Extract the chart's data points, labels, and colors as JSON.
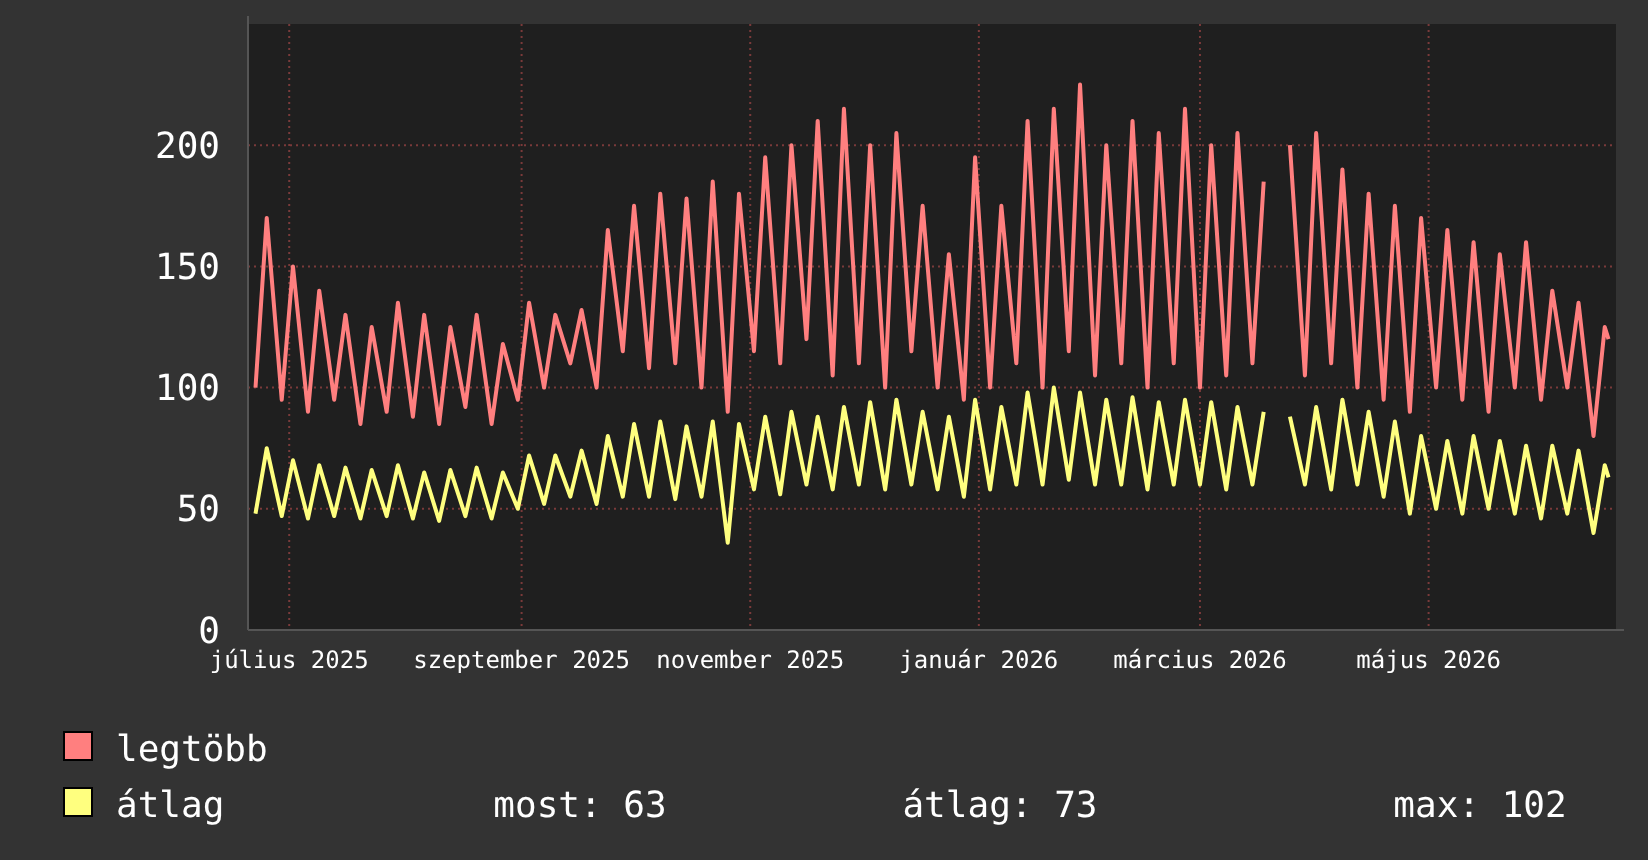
{
  "chart_data": {
    "type": "line",
    "x": [
      "2025-06-22",
      "2025-06-25",
      "2025-06-29",
      "2025-07-02",
      "2025-07-06",
      "2025-07-09",
      "2025-07-13",
      "2025-07-16",
      "2025-07-20",
      "2025-07-23",
      "2025-07-27",
      "2025-07-30",
      "2025-08-03",
      "2025-08-06",
      "2025-08-10",
      "2025-08-13",
      "2025-08-17",
      "2025-08-20",
      "2025-08-24",
      "2025-08-27",
      "2025-08-31",
      "2025-09-03",
      "2025-09-07",
      "2025-09-10",
      "2025-09-14",
      "2025-09-17",
      "2025-09-21",
      "2025-09-24",
      "2025-09-28",
      "2025-10-01",
      "2025-10-05",
      "2025-10-08",
      "2025-10-12",
      "2025-10-15",
      "2025-10-19",
      "2025-10-22",
      "2025-10-26",
      "2025-10-29",
      "2025-11-02",
      "2025-11-05",
      "2025-11-09",
      "2025-11-12",
      "2025-11-16",
      "2025-11-19",
      "2025-11-23",
      "2025-11-26",
      "2025-11-30",
      "2025-12-03",
      "2025-12-07",
      "2025-12-10",
      "2025-12-14",
      "2025-12-17",
      "2025-12-21",
      "2025-12-24",
      "2025-12-28",
      "2025-12-31",
      "2026-01-04",
      "2026-01-07",
      "2026-01-11",
      "2026-01-14",
      "2026-01-18",
      "2026-01-21",
      "2026-01-25",
      "2026-01-28",
      "2026-02-01",
      "2026-02-04",
      "2026-02-08",
      "2026-02-11",
      "2026-02-15",
      "2026-02-18",
      "2026-02-22",
      "2026-02-25",
      "2026-03-01",
      "2026-03-04",
      "2026-03-08",
      "2026-03-11",
      "2026-03-15",
      "2026-03-18",
      "2026-03-22",
      "2026-03-25",
      "2026-03-29",
      "2026-04-01",
      "2026-04-05",
      "2026-04-08",
      "2026-04-12",
      "2026-04-15",
      "2026-04-19",
      "2026-04-22",
      "2026-04-26",
      "2026-04-29",
      "2026-05-03",
      "2026-05-06",
      "2026-05-10",
      "2026-05-13",
      "2026-05-17",
      "2026-05-20",
      "2026-05-24",
      "2026-05-27",
      "2026-05-31",
      "2026-06-03",
      "2026-06-07",
      "2026-06-10",
      "2026-06-14",
      "2026-06-17",
      "2026-06-18"
    ],
    "series": [
      {
        "name": "legtöbb",
        "color": "#ff7f7f",
        "values": [
          100,
          170,
          95,
          150,
          90,
          140,
          95,
          130,
          85,
          125,
          90,
          135,
          88,
          130,
          85,
          125,
          92,
          130,
          85,
          118,
          95,
          135,
          100,
          130,
          110,
          132,
          100,
          165,
          115,
          175,
          108,
          180,
          110,
          178,
          100,
          185,
          90,
          180,
          115,
          195,
          110,
          200,
          120,
          210,
          105,
          215,
          110,
          200,
          100,
          205,
          115,
          175,
          100,
          155,
          95,
          195,
          100,
          175,
          110,
          210,
          100,
          215,
          115,
          225,
          105,
          200,
          110,
          210,
          100,
          205,
          110,
          215,
          100,
          200,
          105,
          205,
          110,
          185,
          null,
          200,
          105,
          205,
          110,
          190,
          100,
          180,
          95,
          175,
          90,
          170,
          100,
          165,
          95,
          160,
          90,
          155,
          100,
          160,
          95,
          140,
          100,
          135,
          80,
          125,
          120
        ]
      },
      {
        "name": "átlag",
        "color": "#ffff7f",
        "values": [
          48,
          75,
          47,
          70,
          46,
          68,
          47,
          67,
          46,
          66,
          47,
          68,
          46,
          65,
          45,
          66,
          47,
          67,
          46,
          65,
          50,
          72,
          52,
          72,
          55,
          74,
          52,
          80,
          55,
          85,
          55,
          86,
          54,
          84,
          55,
          86,
          36,
          85,
          58,
          88,
          56,
          90,
          60,
          88,
          58,
          92,
          60,
          94,
          58,
          95,
          60,
          90,
          58,
          88,
          55,
          95,
          58,
          92,
          60,
          98,
          60,
          100,
          62,
          98,
          60,
          95,
          60,
          96,
          58,
          94,
          60,
          95,
          60,
          94,
          58,
          92,
          60,
          90,
          null,
          88,
          60,
          92,
          58,
          95,
          60,
          90,
          55,
          86,
          48,
          80,
          50,
          78,
          48,
          80,
          50,
          78,
          48,
          76,
          46,
          76,
          48,
          74,
          40,
          68,
          63
        ]
      }
    ],
    "xlim": [
      "2025-06-20",
      "2026-06-20"
    ],
    "xticks": [
      {
        "value": "2025-07-01",
        "label": "július 2025"
      },
      {
        "value": "2025-09-01",
        "label": "szeptember 2025"
      },
      {
        "value": "2025-11-01",
        "label": "november 2025"
      },
      {
        "value": "2026-01-01",
        "label": "január 2026"
      },
      {
        "value": "2026-03-01",
        "label": "március 2026"
      },
      {
        "value": "2026-05-01",
        "label": "május 2026"
      }
    ],
    "ylim": [
      0,
      250
    ],
    "yticks": [
      0,
      50,
      100,
      150,
      200
    ],
    "grid": true,
    "legend": "bottom",
    "annotations": [
      "most: 63",
      "átlag: 73",
      "max: 102"
    ]
  }
}
